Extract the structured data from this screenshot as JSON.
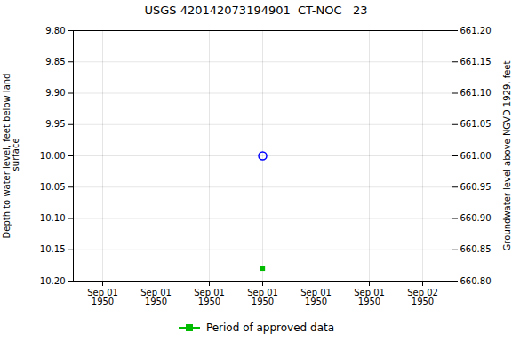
{
  "chart_data": {
    "type": "scatter",
    "title": "USGS 420142073194901  CT-NOC   23",
    "ylabel": "Depth to water level, feet below land\n surface",
    "y2label": "Groundwater level above NGVD 1929, feet",
    "categories": [
      "Sep 01\n1950",
      "Sep 01\n1950",
      "Sep 01\n1950",
      "Sep 01\n1950",
      "Sep 01\n1950",
      "Sep 01\n1950",
      "Sep 02\n1950"
    ],
    "series": [
      {
        "color": "blue",
        "marker": "circle",
        "values": [
          null,
          null,
          null,
          10.0,
          null,
          null,
          null
        ]
      },
      {
        "name": "Period of approved data",
        "color": "#00bb00",
        "marker": "square",
        "values": [
          null,
          null,
          null,
          10.18,
          null,
          null,
          null
        ]
      }
    ],
    "ylim": [
      10.2,
      9.8
    ],
    "yticks": [
      {
        "value": 9.8,
        "label": "9.80"
      },
      {
        "value": 9.85,
        "label": "9.85"
      },
      {
        "value": 9.9,
        "label": "9.90"
      },
      {
        "value": 9.95,
        "label": "9.95"
      },
      {
        "value": 10.0,
        "label": "10.00"
      },
      {
        "value": 10.05,
        "label": "10.05"
      },
      {
        "value": 10.1,
        "label": "10.10"
      },
      {
        "value": 10.15,
        "label": "10.15"
      },
      {
        "value": 10.2,
        "label": "10.20"
      }
    ],
    "y2lim": [
      660.8,
      661.2
    ],
    "y2ticks": [
      {
        "value": 661.2,
        "label": "661.20"
      },
      {
        "value": 661.15,
        "label": "661.15"
      },
      {
        "value": 661.1,
        "label": "661.10"
      },
      {
        "value": 661.05,
        "label": "661.05"
      },
      {
        "value": 661.0,
        "label": "661.00"
      },
      {
        "value": 660.95,
        "label": "660.95"
      },
      {
        "value": 660.9,
        "label": "660.90"
      },
      {
        "value": 660.85,
        "label": "660.85"
      },
      {
        "value": 660.8,
        "label": "660.80"
      }
    ],
    "grid": true,
    "legend": "bottom"
  }
}
